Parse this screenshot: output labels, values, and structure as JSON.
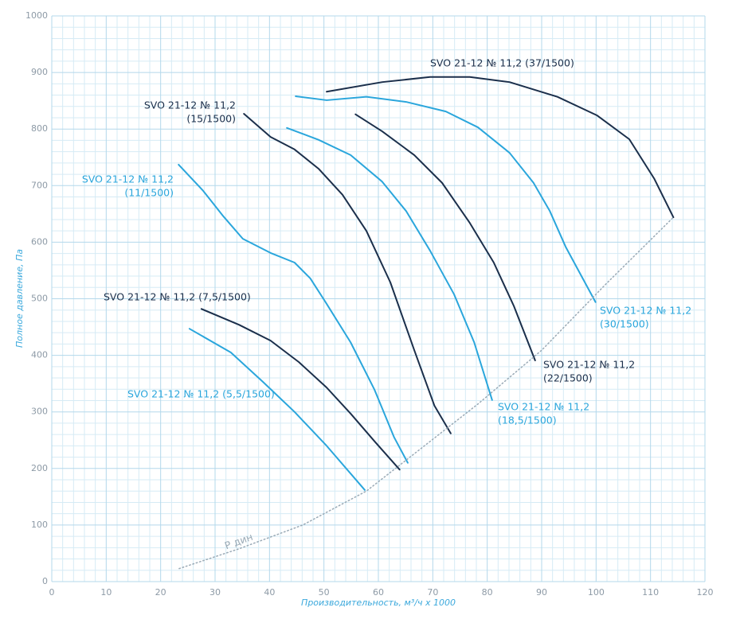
{
  "chart_data": {
    "type": "line",
    "x_label": "Производительность, м³/ч x 1000",
    "y_label": "Полное давление, Па",
    "xlim": [
      0,
      120
    ],
    "xticks": [
      0,
      10,
      20,
      30,
      40,
      50,
      60,
      70,
      80,
      90,
      100,
      110,
      120
    ],
    "ylim": [
      0,
      1000
    ],
    "yticks": [
      0,
      100,
      200,
      300,
      400,
      500,
      600,
      700,
      800,
      900,
      1000
    ],
    "grid": true,
    "series": [
      {
        "name": [
          "SVO 21-12 № 11,2 (5,5/1500)"
        ],
        "color": "#2aa6dc",
        "x": [
          25.3,
          32.9,
          38.8,
          44.6,
          50.5,
          57.5
        ],
        "values": [
          447,
          405,
          353,
          300,
          240,
          162
        ]
      },
      {
        "name": [
          "SVO 21-12 № 11,2 (7,5/1500)"
        ],
        "color": "#1b2f4b",
        "x": [
          27.5,
          34.4,
          40.2,
          45.4,
          50.5,
          54.9,
          59.3,
          63.9
        ],
        "values": [
          482,
          454,
          426,
          388,
          343,
          297,
          248,
          198
        ]
      },
      {
        "name": [
          "SVO 21-12 № 11,2",
          "(11/1500)"
        ],
        "color": "#2aa6dc",
        "x": [
          23.3,
          27.8,
          31.5,
          35.1,
          40.2,
          44.6,
          47.5,
          50.5,
          54.9,
          59.3,
          62.9,
          65.4
        ],
        "values": [
          737,
          691,
          646,
          606,
          581,
          564,
          536,
          491,
          423,
          339,
          255,
          210
        ]
      },
      {
        "name": [
          "SVO 21-12 № 11,2",
          "(15/1500)"
        ],
        "color": "#1b2f4b",
        "x": [
          35.3,
          40.2,
          44.6,
          49.0,
          53.4,
          57.8,
          62.2,
          66.6,
          70.3,
          73.3
        ],
        "values": [
          827,
          786,
          764,
          730,
          684,
          620,
          529,
          409,
          311,
          262
        ]
      },
      {
        "name": [
          "SVO 21-12 № 11,2",
          "(18,5/1500)"
        ],
        "color": "#2aa6dc",
        "x": [
          43.2,
          49.0,
          54.9,
          60.7,
          65.1,
          69.5,
          73.9,
          77.6,
          80.9
        ],
        "values": [
          802,
          781,
          754,
          707,
          655,
          585,
          508,
          423,
          321
        ]
      },
      {
        "name": [
          "SVO 21-12 № 11,2",
          "(22/1500)"
        ],
        "color": "#1b2f4b",
        "x": [
          55.8,
          60.7,
          66.6,
          71.7,
          76.8,
          81.2,
          84.9,
          88.8
        ],
        "values": [
          826,
          796,
          754,
          705,
          634,
          564,
          487,
          391
        ]
      },
      {
        "name": [
          "SVO 21-12 № 11,2",
          "(30/1500)"
        ],
        "color": "#2aa6dc",
        "x": [
          44.8,
          50.5,
          57.8,
          65.1,
          72.4,
          78.3,
          84.1,
          88.5,
          91.5,
          94.4,
          99.9
        ],
        "values": [
          858,
          851,
          857,
          848,
          831,
          803,
          758,
          705,
          655,
          592,
          494
        ]
      },
      {
        "name": [
          "SVO 21-12 № 11,2 (37/1500)"
        ],
        "color": "#1b2f4b",
        "x": [
          50.5,
          60.7,
          69.5,
          76.8,
          84.1,
          92.9,
          100.2,
          106.1,
          110.7,
          114.2
        ],
        "values": [
          866,
          883,
          892,
          892,
          883,
          857,
          824,
          782,
          712,
          644
        ]
      },
      {
        "name": [
          "P дин"
        ],
        "color": "#9aaab6",
        "dashed": true,
        "x": [
          23.4,
          34.4,
          46.1,
          57.8,
          66.6,
          78.3,
          90.0,
          101.7,
          114.2
        ],
        "values": [
          23,
          58,
          100,
          160,
          226,
          314,
          409,
          525,
          644
        ]
      }
    ]
  }
}
